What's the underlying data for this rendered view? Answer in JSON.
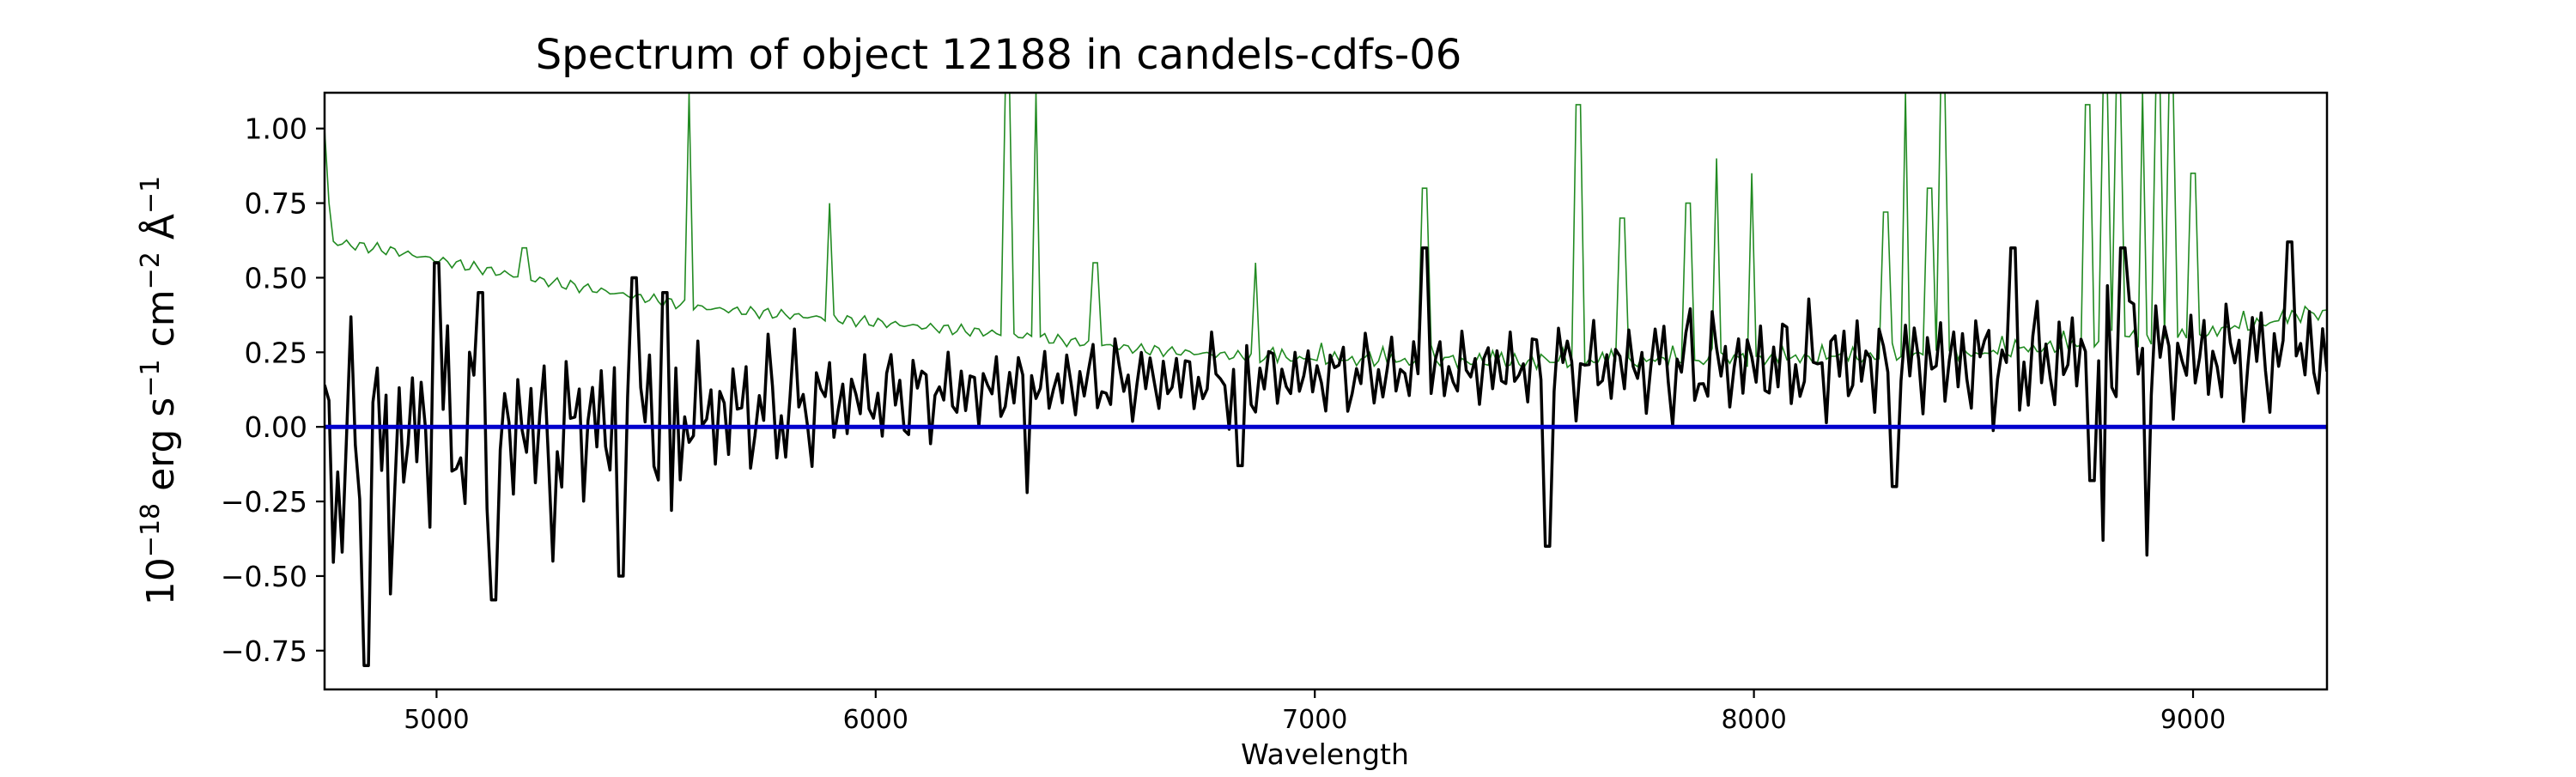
{
  "chart_data": {
    "type": "line",
    "title": "Spectrum of object 12188 in candels-cdfs-06",
    "xlabel": "Wavelength",
    "ylabel": {
      "base": "10",
      "exp1": "−18",
      "erg": " erg s",
      "exp2": "−1",
      "cm": " cm",
      "exp3": "−2",
      "ang": " Å",
      "exp4": "−1"
    },
    "xlim": [
      4745,
      9305
    ],
    "ylim": [
      -0.88,
      1.12
    ],
    "x_ticks": [
      5000,
      6000,
      7000,
      8000,
      9000
    ],
    "x_tick_labels": [
      "5000",
      "6000",
      "7000",
      "8000",
      "9000"
    ],
    "y_ticks": [
      1.0,
      0.75,
      0.5,
      0.25,
      0.0,
      -0.25,
      -0.5,
      -0.75
    ],
    "y_tick_labels": [
      "1.00",
      "0.75",
      "0.50",
      "0.25",
      "0.00",
      "−0.25",
      "−0.50",
      "−0.75"
    ],
    "grid": false,
    "legend": "none",
    "series": [
      {
        "key": "error",
        "color": "#228b22",
        "x_start": 4745,
        "x_end": 9305,
        "step": 10,
        "base_anchors": [
          [
            4745,
            1.0
          ],
          [
            4760,
            0.62
          ],
          [
            4900,
            0.59
          ],
          [
            5200,
            0.5
          ],
          [
            5600,
            0.4
          ],
          [
            6000,
            0.35
          ],
          [
            6300,
            0.31
          ],
          [
            6600,
            0.26
          ],
          [
            7000,
            0.22
          ],
          [
            7500,
            0.21
          ],
          [
            8000,
            0.22
          ],
          [
            8500,
            0.24
          ],
          [
            9000,
            0.3
          ],
          [
            9305,
            0.38
          ]
        ],
        "spikes": [
          [
            5200,
            0.6
          ],
          [
            5577,
            1.12
          ],
          [
            5893,
            0.75
          ],
          [
            6300,
            1.12
          ],
          [
            6363,
            1.12
          ],
          [
            6500,
            0.55
          ],
          [
            6863,
            0.55
          ],
          [
            7250,
            0.8
          ],
          [
            7600,
            1.08
          ],
          [
            7700,
            0.7
          ],
          [
            7850,
            0.75
          ],
          [
            7913,
            0.9
          ],
          [
            7993,
            0.85
          ],
          [
            8300,
            0.72
          ],
          [
            8344,
            1.12
          ],
          [
            8400,
            0.8
          ],
          [
            8430,
            1.12
          ],
          [
            8760,
            1.08
          ],
          [
            8800,
            1.12
          ],
          [
            8830,
            1.12
          ],
          [
            8885,
            1.12
          ],
          [
            8920,
            1.12
          ],
          [
            8950,
            1.12
          ],
          [
            9000,
            0.85
          ]
        ]
      },
      {
        "key": "flux",
        "color": "#000000",
        "x_start": 4745,
        "x_end": 9305,
        "step": 10,
        "trend_anchors": [
          [
            4745,
            -0.05
          ],
          [
            5500,
            0.03
          ],
          [
            6000,
            0.1
          ],
          [
            6500,
            0.15
          ],
          [
            7000,
            0.17
          ],
          [
            7500,
            0.2
          ],
          [
            8000,
            0.21
          ],
          [
            8500,
            0.22
          ],
          [
            9000,
            0.23
          ],
          [
            9305,
            0.24
          ]
        ],
        "noise_anchors": [
          [
            4745,
            0.36
          ],
          [
            5500,
            0.3
          ],
          [
            6000,
            0.18
          ],
          [
            6500,
            0.15
          ],
          [
            7000,
            0.14
          ],
          [
            7600,
            0.17
          ],
          [
            8200,
            0.22
          ],
          [
            8800,
            0.24
          ],
          [
            9305,
            0.22
          ]
        ],
        "dips": [
          [
            4785,
            -0.42
          ],
          [
            4840,
            -0.8
          ],
          [
            4895,
            -0.56
          ],
          [
            5130,
            -0.58
          ],
          [
            5265,
            -0.45
          ],
          [
            5420,
            -0.5
          ],
          [
            5530,
            -0.28
          ],
          [
            6342,
            -0.22
          ],
          [
            6830,
            -0.13
          ],
          [
            7530,
            -0.4
          ],
          [
            8320,
            -0.2
          ],
          [
            8770,
            -0.18
          ],
          [
            8795,
            -0.38
          ],
          [
            8895,
            -0.43
          ]
        ],
        "peaks": [
          [
            5000,
            0.55
          ],
          [
            5100,
            0.45
          ],
          [
            5450,
            0.5
          ],
          [
            5520,
            0.45
          ],
          [
            7250,
            0.6
          ],
          [
            8590,
            0.6
          ],
          [
            8840,
            0.6
          ],
          [
            9220,
            0.62
          ]
        ]
      },
      {
        "key": "zero",
        "color": "#0000cd",
        "y": 0.0
      }
    ]
  }
}
